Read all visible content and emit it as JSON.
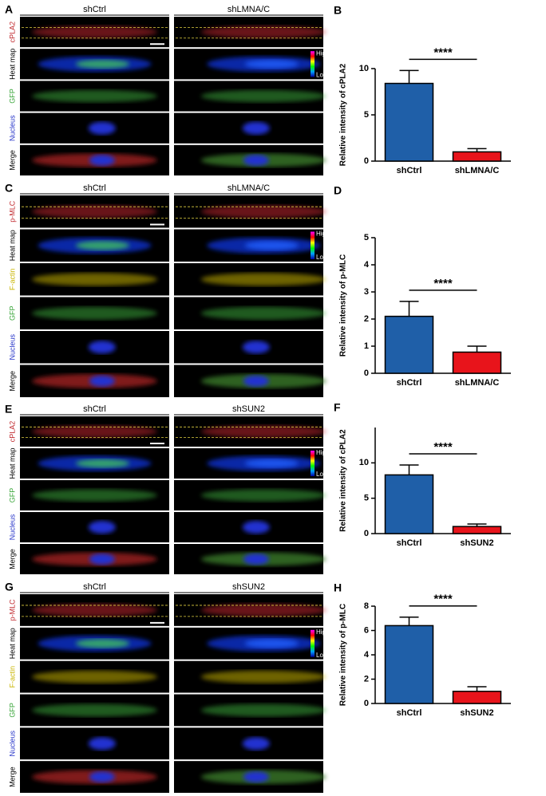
{
  "image_panels": [
    {
      "label": "A",
      "columns": [
        "shCtrl",
        "shLMNA/C"
      ],
      "rows": [
        {
          "name": "cPLA2",
          "color": "#c0282d"
        },
        {
          "name": "Heat map",
          "color": "#000000"
        },
        {
          "name": "GFP",
          "color": "#3aa53a"
        },
        {
          "name": "Nucleus",
          "color": "#2432c8"
        },
        {
          "name": "Merge",
          "color": "#000000"
        }
      ],
      "scale_labels": [
        "High",
        "Low"
      ]
    },
    {
      "label": "C",
      "columns": [
        "shCtrl",
        "shLMNA/C"
      ],
      "rows": [
        {
          "name": "p-MLC",
          "color": "#c0282d"
        },
        {
          "name": "Heat map",
          "color": "#000000"
        },
        {
          "name": "F-actin",
          "color": "#c8b400"
        },
        {
          "name": "GFP",
          "color": "#3aa53a"
        },
        {
          "name": "Nucleus",
          "color": "#2432c8"
        },
        {
          "name": "Merge",
          "color": "#000000"
        }
      ],
      "scale_labels": [
        "High",
        "Low"
      ]
    },
    {
      "label": "E",
      "columns": [
        "shCtrl",
        "shSUN2"
      ],
      "rows": [
        {
          "name": "cPLA2",
          "color": "#c0282d"
        },
        {
          "name": "Heat map",
          "color": "#000000"
        },
        {
          "name": "GFP",
          "color": "#3aa53a"
        },
        {
          "name": "Nucleus",
          "color": "#2432c8"
        },
        {
          "name": "Merge",
          "color": "#000000"
        }
      ],
      "scale_labels": [
        "High",
        "Low"
      ]
    },
    {
      "label": "G",
      "columns": [
        "shCtrl",
        "shSUN2"
      ],
      "rows": [
        {
          "name": "p-MLC",
          "color": "#c0282d"
        },
        {
          "name": "Heat map",
          "color": "#000000"
        },
        {
          "name": "F-actin",
          "color": "#c8b400"
        },
        {
          "name": "GFP",
          "color": "#3aa53a"
        },
        {
          "name": "Nucleus",
          "color": "#2432c8"
        },
        {
          "name": "Merge",
          "color": "#000000"
        }
      ],
      "scale_labels": [
        "High",
        "Low"
      ]
    }
  ],
  "chart_data": [
    {
      "type": "bar",
      "label": "B",
      "ylabel": "Relative intensity of cPLA2",
      "categories": [
        "shCtrl",
        "shLMNA/C"
      ],
      "values": [
        8.4,
        1.0
      ],
      "errors": [
        1.4,
        0.35
      ],
      "colors": [
        "#1f5fa8",
        "#e8141b"
      ],
      "ylim": [
        0,
        10
      ],
      "yticks": [
        0,
        5,
        10
      ],
      "significance": "****"
    },
    {
      "type": "bar",
      "label": "D",
      "ylabel": "Relative intensity of p-MLC",
      "categories": [
        "shCtrl",
        "shLMNA/C"
      ],
      "values": [
        2.1,
        0.78
      ],
      "errors": [
        0.55,
        0.22
      ],
      "colors": [
        "#1f5fa8",
        "#e8141b"
      ],
      "ylim": [
        0,
        5
      ],
      "yticks": [
        0,
        1,
        2,
        3,
        4,
        5
      ],
      "significance": "****"
    },
    {
      "type": "bar",
      "label": "F",
      "ylabel": "Relative intensity of cPLA2",
      "categories": [
        "shCtrl",
        "shSUN2"
      ],
      "values": [
        8.3,
        1.0
      ],
      "errors": [
        1.4,
        0.35
      ],
      "colors": [
        "#1f5fa8",
        "#e8141b"
      ],
      "ylim": [
        0,
        15
      ],
      "yticks": [
        0,
        5,
        10
      ],
      "significance": "****"
    },
    {
      "type": "bar",
      "label": "H",
      "ylabel": "Relative intensity of p-MLC",
      "categories": [
        "shCtrl",
        "shSUN2"
      ],
      "values": [
        6.4,
        1.0
      ],
      "errors": [
        0.7,
        0.38
      ],
      "colors": [
        "#1f5fa8",
        "#e8141b"
      ],
      "ylim": [
        0,
        8
      ],
      "yticks": [
        0,
        2,
        4,
        6,
        8
      ],
      "significance": "****"
    }
  ]
}
